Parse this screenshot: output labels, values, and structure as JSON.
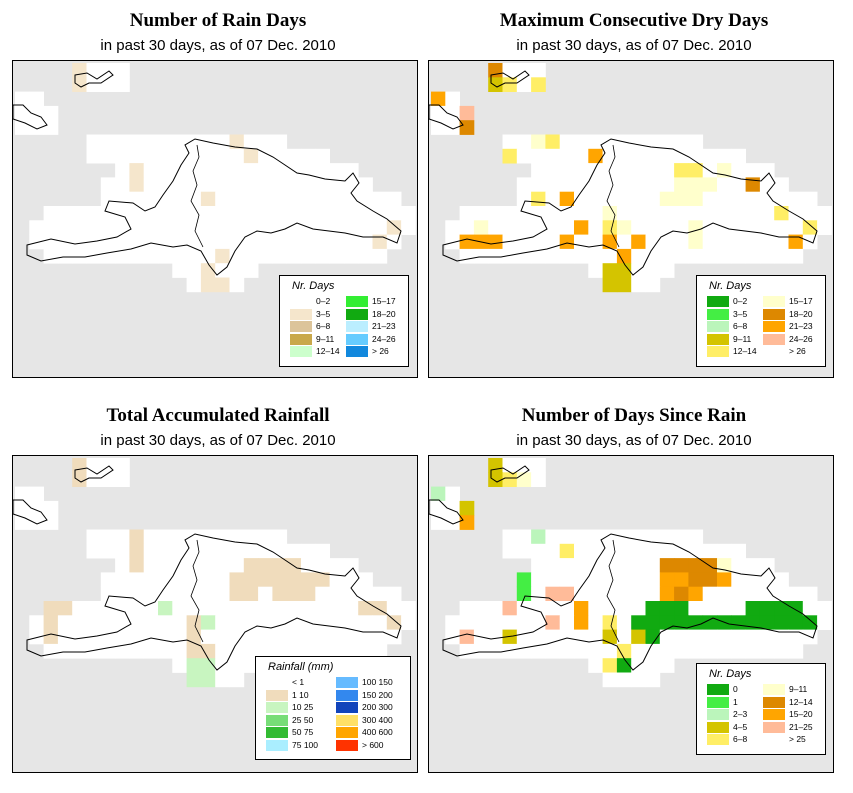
{
  "panels": [
    {
      "id": "rain-days",
      "title": "Number of Rain Days",
      "subtitle": "in past 30 days, as of  07 Dec. 2010",
      "legend": {
        "title": "Nr. Days",
        "items": [
          {
            "label": "0–2",
            "color": "#ffffff"
          },
          {
            "label": "3–5",
            "color": "#f5e6cc"
          },
          {
            "label": "6–8",
            "color": "#dcc49a"
          },
          {
            "label": "9–11",
            "color": "#c9a84a"
          },
          {
            "label": "12–14",
            "color": "#ccffcc"
          },
          {
            "label": "15–17",
            "color": "#33ee33"
          },
          {
            "label": "18–20",
            "color": "#11aa11"
          },
          {
            "label": "21–23",
            "color": "#bbeeff"
          },
          {
            "label": "24–26",
            "color": "#66ccff"
          },
          {
            "label": "> 26",
            "color": "#1188dd"
          }
        ]
      }
    },
    {
      "id": "dry-days",
      "title": "Maximum Consecutive Dry Days",
      "subtitle": "in past 30 days, as of  07 Dec. 2010",
      "legend": {
        "title": "Nr. Days",
        "items": [
          {
            "label": "0–2",
            "color": "#11aa11"
          },
          {
            "label": "3–5",
            "color": "#44ee44"
          },
          {
            "label": "6–8",
            "color": "#bbf5bb"
          },
          {
            "label": "9–11",
            "color": "#d4c400"
          },
          {
            "label": "12–14",
            "color": "#ffee66"
          },
          {
            "label": "15–17",
            "color": "#ffffcc"
          },
          {
            "label": "18–20",
            "color": "#dd8800"
          },
          {
            "label": "21–23",
            "color": "#ffa500"
          },
          {
            "label": "24–26",
            "color": "#ffbb99"
          },
          {
            "label": "> 26",
            "color": "#ffffff"
          }
        ]
      }
    },
    {
      "id": "rainfall",
      "title": "Total Accumulated Rainfall",
      "subtitle": "in past 30 days, as of  07 Dec. 2010",
      "legend": {
        "title": "Rainfall (mm)",
        "items": [
          {
            "label": "< 1",
            "color": "#ffffff"
          },
          {
            "label": "1    10",
            "color": "#f0dcbc"
          },
          {
            "label": "10    25",
            "color": "#c8f5c0"
          },
          {
            "label": "25    50",
            "color": "#77dd77"
          },
          {
            "label": "50    75",
            "color": "#33bb33"
          },
          {
            "label": "75   100",
            "color": "#aaeeff"
          },
          {
            "label": "100   150",
            "color": "#66bbff"
          },
          {
            "label": "150   200",
            "color": "#3388ee"
          },
          {
            "label": "200   300",
            "color": "#1144bb"
          },
          {
            "label": "300   400",
            "color": "#ffe066"
          },
          {
            "label": "400   600",
            "color": "#ffa500"
          },
          {
            "label": "> 600",
            "color": "#ff3300"
          }
        ]
      }
    },
    {
      "id": "days-since-rain",
      "title": "Number of Days Since Rain",
      "subtitle": "in past 30 days, as of  07 Dec. 2010",
      "legend": {
        "title": "Nr. Days",
        "items": [
          {
            "label": "0",
            "color": "#11aa11"
          },
          {
            "label": "1",
            "color": "#44ee44"
          },
          {
            "label": "2–3",
            "color": "#bbf5bb"
          },
          {
            "label": "4–5",
            "color": "#d4c400"
          },
          {
            "label": "6–8",
            "color": "#ffee66"
          },
          {
            "label": "9–11",
            "color": "#ffffcc"
          },
          {
            "label": "12–14",
            "color": "#dd8800"
          },
          {
            "label": "15–20",
            "color": "#ffa500"
          },
          {
            "label": "21–25",
            "color": "#ffbb99"
          },
          {
            "label": "> 25",
            "color": "#ffffff"
          }
        ]
      }
    }
  ]
}
